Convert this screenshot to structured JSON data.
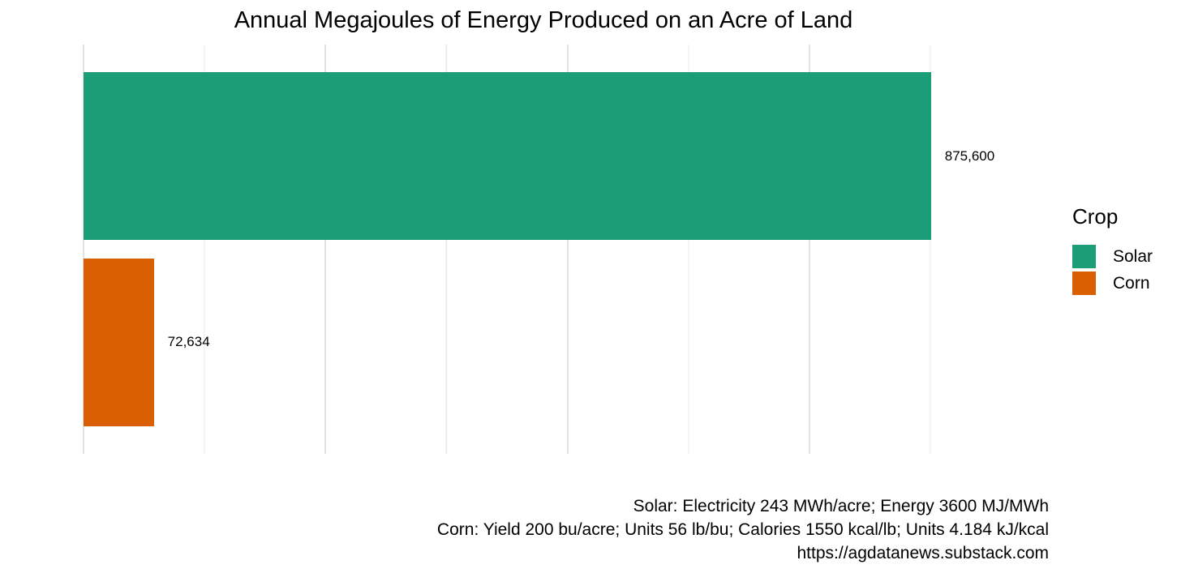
{
  "chart_data": {
    "type": "bar",
    "orientation": "horizontal",
    "title": "Annual Megajoules of Energy Produced on an Acre of Land",
    "categories": [
      "Solar",
      "Corn"
    ],
    "values": [
      875600,
      72634
    ],
    "value_labels": [
      "875,600",
      "72,634"
    ],
    "xlabel": "",
    "ylabel": "",
    "xlim": [
      0,
      919380
    ],
    "x_major_gridlines": [
      0,
      250000,
      500000,
      750000
    ],
    "x_minor_gridlines": [
      125000,
      375000,
      625000,
      875000
    ],
    "grid": "vertical-only",
    "axis_tick_labels_visible": false,
    "legend": {
      "title": "Crop",
      "position": "right",
      "items": [
        {
          "label": "Solar",
          "color": "#1b9e77"
        },
        {
          "label": "Corn",
          "color": "#d95f02"
        }
      ]
    },
    "caption_lines": [
      "Solar: Electricity 243 MWh/acre; Energy 3600 MJ/MWh",
      "Corn: Yield 200 bu/acre; Units 56 lb/bu; Calories 1550 kcal/lb; Units 4.184 kJ/kcal",
      "https://agdatanews.substack.com"
    ]
  },
  "colors": {
    "background": "#ffffff",
    "grid_major": "#e2e2e2",
    "grid_minor": "#ebebeb",
    "text": "#000000"
  }
}
